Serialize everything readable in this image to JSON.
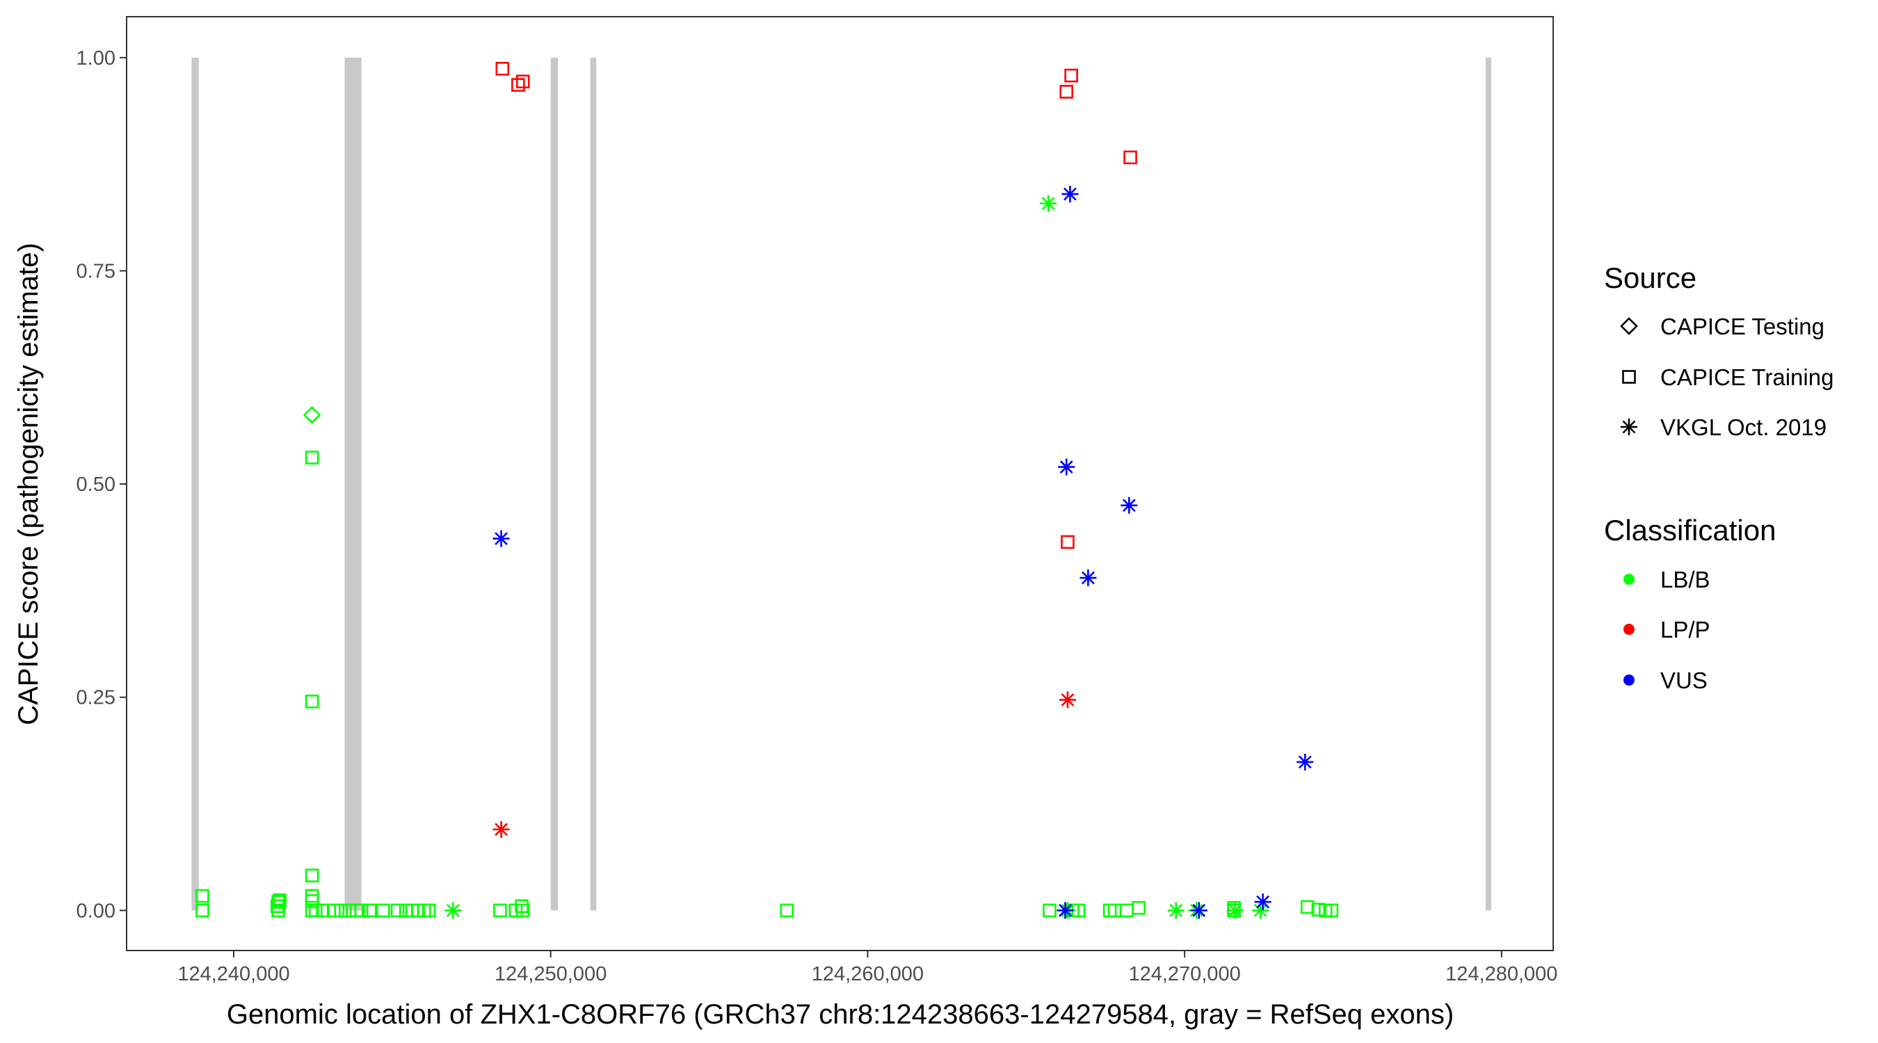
{
  "chart_data": {
    "type": "scatter",
    "xlabel": "Genomic location of ZHX1-C8ORF76 (GRCh37 chr8:124238663-124279584, gray = RefSeq exons)",
    "ylabel": "CAPICE score (pathogenicity estimate)",
    "xlim": [
      124236621,
      124281628
    ],
    "ylim": [
      -0.047,
      1.048
    ],
    "x_ticks": [
      124240000,
      124250000,
      124260000,
      124270000,
      124280000
    ],
    "x_tick_labels": [
      "124,240,000",
      "124,250,000",
      "124,260,000",
      "124,270,000",
      "124,280,000"
    ],
    "y_ticks": [
      0,
      0.25,
      0.5,
      0.75,
      1.0
    ],
    "y_tick_labels": [
      "0.00",
      "0.25",
      "0.50",
      "0.75",
      "1.00"
    ],
    "grid": false,
    "exons": [
      [
        124238670,
        124238900
      ],
      [
        124243500,
        124244030
      ],
      [
        124250000,
        124250230
      ],
      [
        124251250,
        124251440
      ],
      [
        124279500,
        124279650
      ]
    ],
    "exon_color": "#c8c8c8",
    "legend_placement": "right",
    "legend": {
      "source_title": "Source",
      "sources": [
        {
          "label": "CAPICE Testing",
          "shape": "diamond"
        },
        {
          "label": "CAPICE Training",
          "shape": "square"
        },
        {
          "label": "VKGL Oct. 2019",
          "shape": "asterisk"
        }
      ],
      "class_title": "Classification",
      "classes": [
        {
          "label": "LB/B",
          "color": "#00ff00"
        },
        {
          "label": "LP/P",
          "color": "#ff0000"
        },
        {
          "label": "VUS",
          "color": "#0000ff"
        }
      ]
    },
    "points": [
      {
        "x": 124239012,
        "y": 0.017,
        "source": "CAPICE Training",
        "class": "LB/B"
      },
      {
        "x": 124239012,
        "y": 0.0,
        "source": "CAPICE Training",
        "class": "LB/B"
      },
      {
        "x": 124241407,
        "y": 0.01,
        "source": "CAPICE Training",
        "class": "LB/B"
      },
      {
        "x": 124241450,
        "y": 0.012,
        "source": "CAPICE Training",
        "class": "LB/B"
      },
      {
        "x": 124241380,
        "y": 0.005,
        "source": "CAPICE Training",
        "class": "LB/B"
      },
      {
        "x": 124241407,
        "y": 0.0,
        "source": "CAPICE Training",
        "class": "LB/B"
      },
      {
        "x": 124242471,
        "y": 0.041,
        "source": "CAPICE Training",
        "class": "LB/B"
      },
      {
        "x": 124242471,
        "y": 0.017,
        "source": "CAPICE Training",
        "class": "LB/B"
      },
      {
        "x": 124242471,
        "y": 0.011,
        "source": "CAPICE Training",
        "class": "LB/B"
      },
      {
        "x": 124242471,
        "y": 0.0,
        "source": "CAPICE Training",
        "class": "LB/B"
      },
      {
        "x": 124242471,
        "y": 0.531,
        "source": "CAPICE Training",
        "class": "LB/B"
      },
      {
        "x": 124242471,
        "y": 0.245,
        "source": "CAPICE Training",
        "class": "LB/B"
      },
      {
        "x": 124242471,
        "y": 0.581,
        "source": "CAPICE Testing",
        "class": "LB/B"
      },
      {
        "x": 124242585,
        "y": 0.0,
        "source": "CAPICE Training",
        "class": "LB/B"
      },
      {
        "x": 124242813,
        "y": 0.0,
        "source": "CAPICE Training",
        "class": "LB/B"
      },
      {
        "x": 124243156,
        "y": 0.0,
        "source": "CAPICE Training",
        "class": "LB/B"
      },
      {
        "x": 124243384,
        "y": 0.0,
        "source": "CAPICE Training",
        "class": "LB/B"
      },
      {
        "x": 124243650,
        "y": 0.0,
        "source": "CAPICE Training",
        "class": "LB/B"
      },
      {
        "x": 124243878,
        "y": 0.0,
        "source": "CAPICE Training",
        "class": "LB/B"
      },
      {
        "x": 124244030,
        "y": 0.0,
        "source": "CAPICE Training",
        "class": "LB/B"
      },
      {
        "x": 124244296,
        "y": 0.0,
        "source": "CAPICE Training",
        "class": "LB/B"
      },
      {
        "x": 124244714,
        "y": 0.0,
        "source": "CAPICE Training",
        "class": "LB/B"
      },
      {
        "x": 124245171,
        "y": 0.0,
        "source": "CAPICE Training",
        "class": "LB/B"
      },
      {
        "x": 124245437,
        "y": 0.0,
        "source": "CAPICE Training",
        "class": "LB/B"
      },
      {
        "x": 124245627,
        "y": 0.0,
        "source": "CAPICE Training",
        "class": "LB/B"
      },
      {
        "x": 124245817,
        "y": 0.0,
        "source": "CAPICE Training",
        "class": "LB/B"
      },
      {
        "x": 124246007,
        "y": 0.0,
        "source": "CAPICE Training",
        "class": "LB/B"
      },
      {
        "x": 124246159,
        "y": 0.0,
        "source": "CAPICE Training",
        "class": "LB/B"
      },
      {
        "x": 124246920,
        "y": 0.0,
        "source": "VKGL Oct. 2019",
        "class": "LB/B"
      },
      {
        "x": 124248402,
        "y": 0.0,
        "source": "CAPICE Training",
        "class": "LB/B"
      },
      {
        "x": 124248897,
        "y": 0.0,
        "source": "CAPICE Training",
        "class": "LB/B"
      },
      {
        "x": 124249087,
        "y": 0.005,
        "source": "CAPICE Training",
        "class": "LB/B"
      },
      {
        "x": 124249125,
        "y": 0.0,
        "source": "CAPICE Training",
        "class": "LB/B"
      },
      {
        "x": 124248478,
        "y": 0.987,
        "source": "CAPICE Training",
        "class": "LP/P"
      },
      {
        "x": 124248973,
        "y": 0.968,
        "source": "CAPICE Training",
        "class": "LP/P"
      },
      {
        "x": 124249125,
        "y": 0.972,
        "source": "CAPICE Training",
        "class": "LP/P"
      },
      {
        "x": 124248440,
        "y": 0.095,
        "source": "VKGL Oct. 2019",
        "class": "LP/P"
      },
      {
        "x": 124248440,
        "y": 0.436,
        "source": "VKGL Oct. 2019",
        "class": "VUS"
      },
      {
        "x": 124257451,
        "y": 0.0,
        "source": "CAPICE Training",
        "class": "LB/B"
      },
      {
        "x": 124265740,
        "y": 0.0,
        "source": "CAPICE Training",
        "class": "LB/B"
      },
      {
        "x": 124265702,
        "y": 0.829,
        "source": "VKGL Oct. 2019",
        "class": "LB/B"
      },
      {
        "x": 124266462,
        "y": 0.0,
        "source": "CAPICE Training",
        "class": "LB/B"
      },
      {
        "x": 124266652,
        "y": 0.0,
        "source": "CAPICE Training",
        "class": "LB/B"
      },
      {
        "x": 124266310,
        "y": 0.0,
        "source": "VKGL Oct. 2019",
        "class": "LB/B"
      },
      {
        "x": 124267641,
        "y": 0.0,
        "source": "CAPICE Training",
        "class": "LB/B"
      },
      {
        "x": 124267793,
        "y": 0.0,
        "source": "CAPICE Training",
        "class": "LB/B"
      },
      {
        "x": 124268173,
        "y": 0.0,
        "source": "CAPICE Training",
        "class": "LB/B"
      },
      {
        "x": 124268553,
        "y": 0.003,
        "source": "CAPICE Training",
        "class": "LB/B"
      },
      {
        "x": 124269728,
        "y": 0.0,
        "source": "VKGL Oct. 2019",
        "class": "LB/B"
      },
      {
        "x": 124270378,
        "y": 0.0,
        "source": "VKGL Oct. 2019",
        "class": "LB/B"
      },
      {
        "x": 124271557,
        "y": 0.0,
        "source": "CAPICE Training",
        "class": "LB/B"
      },
      {
        "x": 124271557,
        "y": 0.003,
        "source": "CAPICE Training",
        "class": "LB/B"
      },
      {
        "x": 124271595,
        "y": 0.0,
        "source": "VKGL Oct. 2019",
        "class": "LB/B"
      },
      {
        "x": 124272393,
        "y": 0.0,
        "source": "VKGL Oct. 2019",
        "class": "LB/B"
      },
      {
        "x": 124273876,
        "y": 0.004,
        "source": "CAPICE Training",
        "class": "LB/B"
      },
      {
        "x": 124274218,
        "y": 0.001,
        "source": "CAPICE Training",
        "class": "LB/B"
      },
      {
        "x": 124274446,
        "y": 0.0,
        "source": "CAPICE Training",
        "class": "LB/B"
      },
      {
        "x": 124274636,
        "y": 0.0,
        "source": "CAPICE Training",
        "class": "LB/B"
      },
      {
        "x": 124266272,
        "y": 0.96,
        "source": "CAPICE Training",
        "class": "LP/P"
      },
      {
        "x": 124266424,
        "y": 0.979,
        "source": "CAPICE Training",
        "class": "LP/P"
      },
      {
        "x": 124268287,
        "y": 0.883,
        "source": "CAPICE Training",
        "class": "LP/P"
      },
      {
        "x": 124266310,
        "y": 0.432,
        "source": "CAPICE Training",
        "class": "LP/P"
      },
      {
        "x": 124266310,
        "y": 0.247,
        "source": "VKGL Oct. 2019",
        "class": "LP/P"
      },
      {
        "x": 124266386,
        "y": 0.84,
        "source": "VKGL Oct. 2019",
        "class": "VUS"
      },
      {
        "x": 124266272,
        "y": 0.52,
        "source": "VKGL Oct. 2019",
        "class": "VUS"
      },
      {
        "x": 124268249,
        "y": 0.475,
        "source": "VKGL Oct. 2019",
        "class": "VUS"
      },
      {
        "x": 124266956,
        "y": 0.39,
        "source": "VKGL Oct. 2019",
        "class": "VUS"
      },
      {
        "x": 124273800,
        "y": 0.174,
        "source": "VKGL Oct. 2019",
        "class": "VUS"
      },
      {
        "x": 124266234,
        "y": 0.0,
        "source": "VKGL Oct. 2019",
        "class": "VUS"
      },
      {
        "x": 124270454,
        "y": 0.0,
        "source": "VKGL Oct. 2019",
        "class": "VUS"
      },
      {
        "x": 124272469,
        "y": 0.01,
        "source": "VKGL Oct. 2019",
        "class": "VUS"
      }
    ]
  }
}
